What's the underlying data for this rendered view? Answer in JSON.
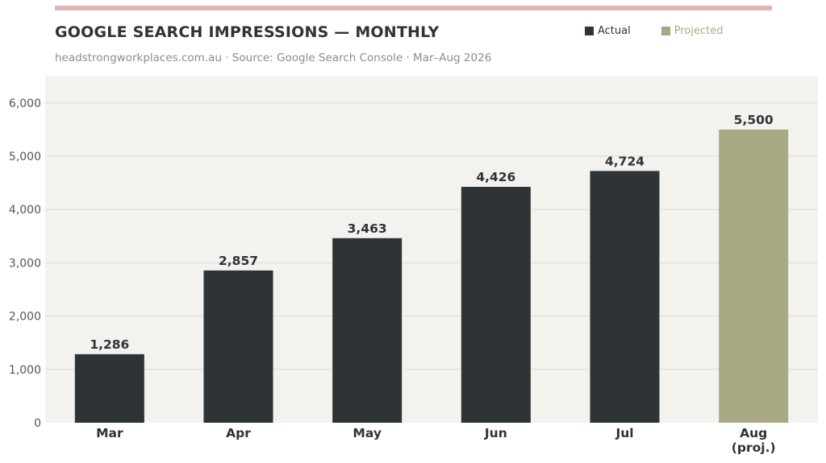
{
  "header": {
    "title": "GOOGLE SEARCH IMPRESSIONS — MONTHLY",
    "subtitle": "headstrongworkplaces.com.au  ·  Source: Google Search Console  ·  Mar–Aug 2026"
  },
  "legend": [
    {
      "label": "Actual",
      "color": "#2e3336",
      "text_color": "#2e3336"
    },
    {
      "label": "Projected",
      "color": "#a9a985",
      "text_color": "#a9a985"
    }
  ],
  "colors": {
    "accent": "#e0b4b6",
    "plot_background": "#f4f2ef",
    "gridline": "#dedbd5",
    "actual": "#2e3336",
    "projected": "#a9a985",
    "axis_text": "#555555",
    "label_text": "#2e3336"
  },
  "chart_data": {
    "type": "bar",
    "categories": [
      "Mar",
      "Apr",
      "May",
      "Jun",
      "Jul",
      "Aug\n(proj.)"
    ],
    "values": [
      1286,
      2857,
      3463,
      4426,
      4724,
      5500
    ],
    "value_labels": [
      "1,286",
      "2,857",
      "3,463",
      "4,426",
      "4,724",
      "5,500"
    ],
    "projected": [
      false,
      false,
      false,
      false,
      false,
      true
    ],
    "ylim": [
      0,
      6300
    ],
    "yticks": [
      0,
      1000,
      2000,
      3000,
      4000,
      5000,
      6000
    ],
    "ytick_labels": [
      "0",
      "1,000",
      "2,000",
      "3,000",
      "4,000",
      "5,000",
      "6,000"
    ],
    "grid": true,
    "legend_position": "top-right"
  }
}
